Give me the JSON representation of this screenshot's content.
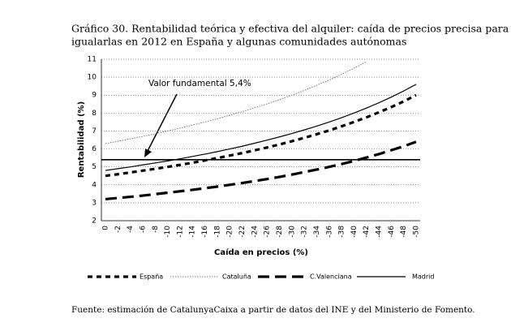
{
  "chart_data": {
    "type": "line",
    "title": "Gráfico 30. Rentabilidad teórica y efectiva del alquiler: caída de precios precisa para",
    "subtitle": "igualarlas en 2012 en España y algunas comunidades autónomas",
    "x_label": "Caída en precios (%)",
    "y_label": "Rentabilidad (%)",
    "source": "Fuente: estimación de CatalunyaCaixa a partir de datos del INE y del Ministerio de Fomento.",
    "categories": [
      "0",
      "-2",
      "-4",
      "-6",
      "-8",
      "-10",
      "-12",
      "-14",
      "-16",
      "-18",
      "-20",
      "-22",
      "-24",
      "-26",
      "-28",
      "-30",
      "-32",
      "-34",
      "-36",
      "-38",
      "-40",
      "-42",
      "-44",
      "-46",
      "-48",
      "-50"
    ],
    "ylim": [
      2,
      11
    ],
    "yticks": [
      2,
      3,
      4,
      5,
      6,
      7,
      8,
      9,
      10,
      11
    ],
    "grid": true,
    "reference": {
      "value": 5.4,
      "label": "Valor fundamental 5,4%"
    },
    "series": [
      {
        "name": "España",
        "color": "#000000",
        "style": "dashed",
        "values": [
          4.5,
          4.59,
          4.69,
          4.79,
          4.89,
          5.0,
          5.11,
          5.23,
          5.36,
          5.49,
          5.63,
          5.77,
          5.92,
          6.08,
          6.25,
          6.43,
          6.62,
          6.82,
          7.03,
          7.26,
          7.5,
          7.76,
          8.04,
          8.33,
          8.65,
          9.0
        ]
      },
      {
        "name": "Cataluña",
        "color": "#555555",
        "style": "dotted",
        "values": [
          6.3,
          6.43,
          6.56,
          6.7,
          6.85,
          7.0,
          7.16,
          7.33,
          7.5,
          7.68,
          7.88,
          8.08,
          8.29,
          8.51,
          8.75,
          9.0,
          9.26,
          9.55,
          9.84,
          10.16,
          10.5,
          10.86,
          null,
          null,
          null,
          null
        ]
      },
      {
        "name": "C.Valenciana",
        "color": "#000000",
        "style": "longdash",
        "values": [
          3.2,
          3.27,
          3.33,
          3.4,
          3.48,
          3.56,
          3.64,
          3.72,
          3.81,
          3.9,
          4.0,
          4.1,
          4.21,
          4.32,
          4.44,
          4.57,
          4.71,
          4.85,
          5.0,
          5.16,
          5.33,
          5.52,
          5.71,
          5.93,
          6.15,
          6.4
        ]
      },
      {
        "name": "Madrid",
        "color": "#000000",
        "style": "solid",
        "values": [
          4.8,
          4.9,
          5.0,
          5.11,
          5.22,
          5.33,
          5.45,
          5.58,
          5.71,
          5.85,
          6.0,
          6.15,
          6.32,
          6.49,
          6.67,
          6.86,
          7.06,
          7.27,
          7.5,
          7.74,
          8.0,
          8.28,
          8.57,
          8.89,
          9.23,
          9.6
        ]
      }
    ]
  }
}
